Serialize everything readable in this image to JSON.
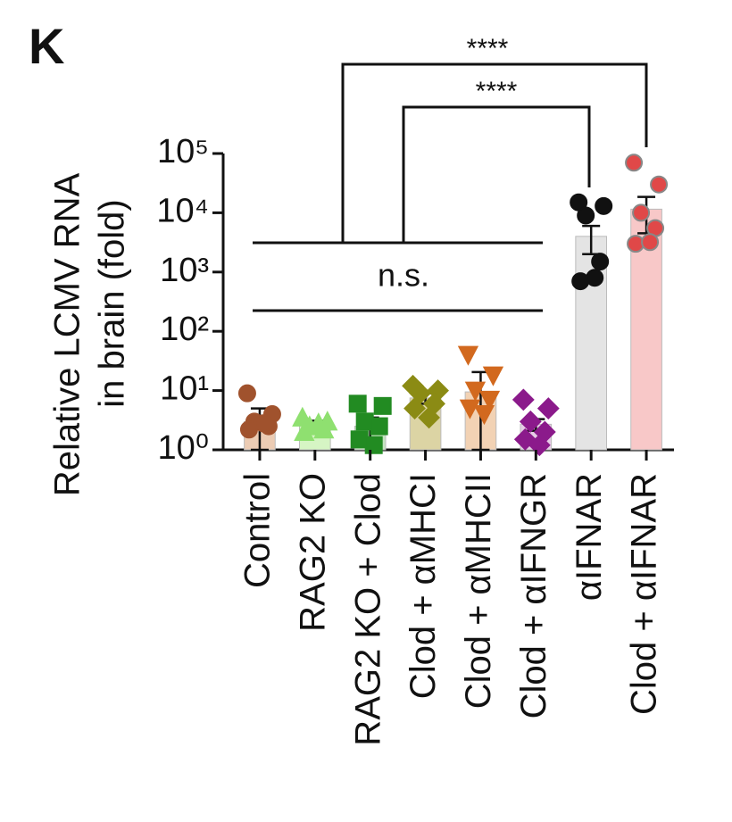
{
  "chart_data": {
    "type": "bar",
    "panel_label": "K",
    "ylabel": [
      "Relative LCMV RNA",
      "in brain (fold)"
    ],
    "categories": [
      "Control",
      "RAG2 KO",
      "RAG2 KO + Clod",
      "Clod + αMHCI",
      "Clod + αMHCII",
      "Clod + αIFNGR",
      "αIFNAR",
      "Clod + αIFNAR"
    ],
    "values": [
      3,
      2.7,
      2.5,
      7.5,
      9.5,
      2.7,
      4000,
      11500
    ],
    "errors": [
      2,
      0.4,
      1,
      1.5,
      11,
      0.6,
      2000,
      7000
    ],
    "colors": [
      "#ecccb4",
      "#d6f5c4",
      "#c4e4c0",
      "#dcd4a4",
      "#f2d2b4",
      "#e6cce6",
      "#e4e4e4",
      "#f8c8c8"
    ],
    "point_colors": [
      "#a0522d",
      "#8fe070",
      "#228b22",
      "#8b8b14",
      "#d2691e",
      "#8b1a8b",
      "#111111",
      "#e04848"
    ],
    "point_markers": [
      "circle",
      "triangle",
      "square",
      "diamond",
      "triangle-down",
      "diamond",
      "circle",
      "circle"
    ],
    "points": [
      [
        9,
        4,
        3,
        2.5,
        2.2,
        2.8
      ],
      [
        3.5,
        3,
        2.5,
        2.2,
        2,
        2.8
      ],
      [
        6,
        5.5,
        3,
        2.5,
        1.5,
        1.2
      ],
      [
        12,
        10,
        9,
        6,
        5,
        3.5
      ],
      [
        40,
        18,
        10,
        7,
        5,
        4
      ],
      [
        7,
        5,
        3,
        2,
        1.5,
        1.2
      ],
      [
        15000,
        13000,
        9000,
        1500,
        700,
        800
      ],
      [
        70000,
        30000,
        10000,
        5500,
        3000,
        3200
      ]
    ],
    "ylim": [
      1,
      100000
    ],
    "log_scale": true,
    "yticks": [
      {
        "value": 1,
        "label": "10⁰"
      },
      {
        "value": 10,
        "label": "10¹"
      },
      {
        "value": 100,
        "label": "10²"
      },
      {
        "value": 1000,
        "label": "10³"
      },
      {
        "value": 10000,
        "label": "10⁴"
      },
      {
        "value": 100000,
        "label": "10⁵"
      }
    ],
    "annotations": [
      "n.s.",
      "****",
      "****"
    ]
  }
}
